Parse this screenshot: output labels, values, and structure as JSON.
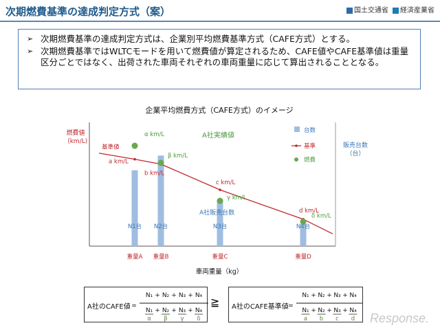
{
  "header": {
    "title": "次期燃費基準の達成判定方式（案）",
    "org1": "国土交通省",
    "org2": "経済産業省"
  },
  "bullets": [
    "次期燃費基準の達成判定方式は、企業別平均燃費基準方式（CAFE方式）とする。",
    "次期燃費基準ではWLTCモードを用いて燃費値が算定されるため、CAFE値やCAFE基準値は重量区分ごとではなく、出荷された車両それぞれの車両重量に応じて算出されることとなる。"
  ],
  "chart_data": {
    "type": "bar",
    "title": "企業平均燃費方式（CAFE方式）のイメージ",
    "ylabel": "燃費値\n（km/L)",
    "ylabel_right": "販売台数\n（台）",
    "xlabel": "車両重量（kg）",
    "categories": [
      "重量A",
      "重量B",
      "重量C",
      "重量D"
    ],
    "bar_labels": [
      "N1台",
      "N2台",
      "N3台",
      "N4台"
    ],
    "bar_heights": [
      0.62,
      0.74,
      0.38,
      0.18
    ],
    "fuel_points": [
      {
        "label": "α km/L",
        "value": 0.82
      },
      {
        "label": "β km/L",
        "value": 0.68
      },
      {
        "label": "γ km/L",
        "value": 0.37
      },
      {
        "label": "δ km/L",
        "value": 0.2
      }
    ],
    "standard_labels": [
      "a km/L",
      "b km/L",
      "c km/L",
      "d km/L"
    ],
    "standard_line_label": "基準値",
    "annotations": {
      "company_actual": "A社実績値",
      "company_sales": "A社販売台数"
    },
    "legend": [
      "台数",
      "基準",
      "燃費"
    ],
    "colors": {
      "bar": "#9fbde0",
      "line": "#c0282d",
      "point": "#6aa84f",
      "label_red": "#c0282d",
      "label_green": "#4a9a3a",
      "label_blue": "#3a78b8"
    }
  },
  "formula_left": {
    "label": "A社のCAFE値",
    "eq": "=",
    "numerators": [
      "N₁",
      "N₂",
      "N₃",
      "N₄"
    ],
    "denominators": [
      "N₁",
      "N₂",
      "N₃",
      "N₄"
    ],
    "den_divisors": [
      "α",
      "β",
      "γ",
      "δ"
    ]
  },
  "ge": "≧",
  "formula_right": {
    "label": "A社のCAFE基準値",
    "eq": "=",
    "numerators": [
      "N₁",
      "N₂",
      "N₃",
      "N₄"
    ],
    "denominators": [
      "N₁",
      "N₂",
      "N₃",
      "N₄"
    ],
    "den_divisors": [
      "a",
      "b",
      "c",
      "d"
    ]
  },
  "watermark": "Response."
}
